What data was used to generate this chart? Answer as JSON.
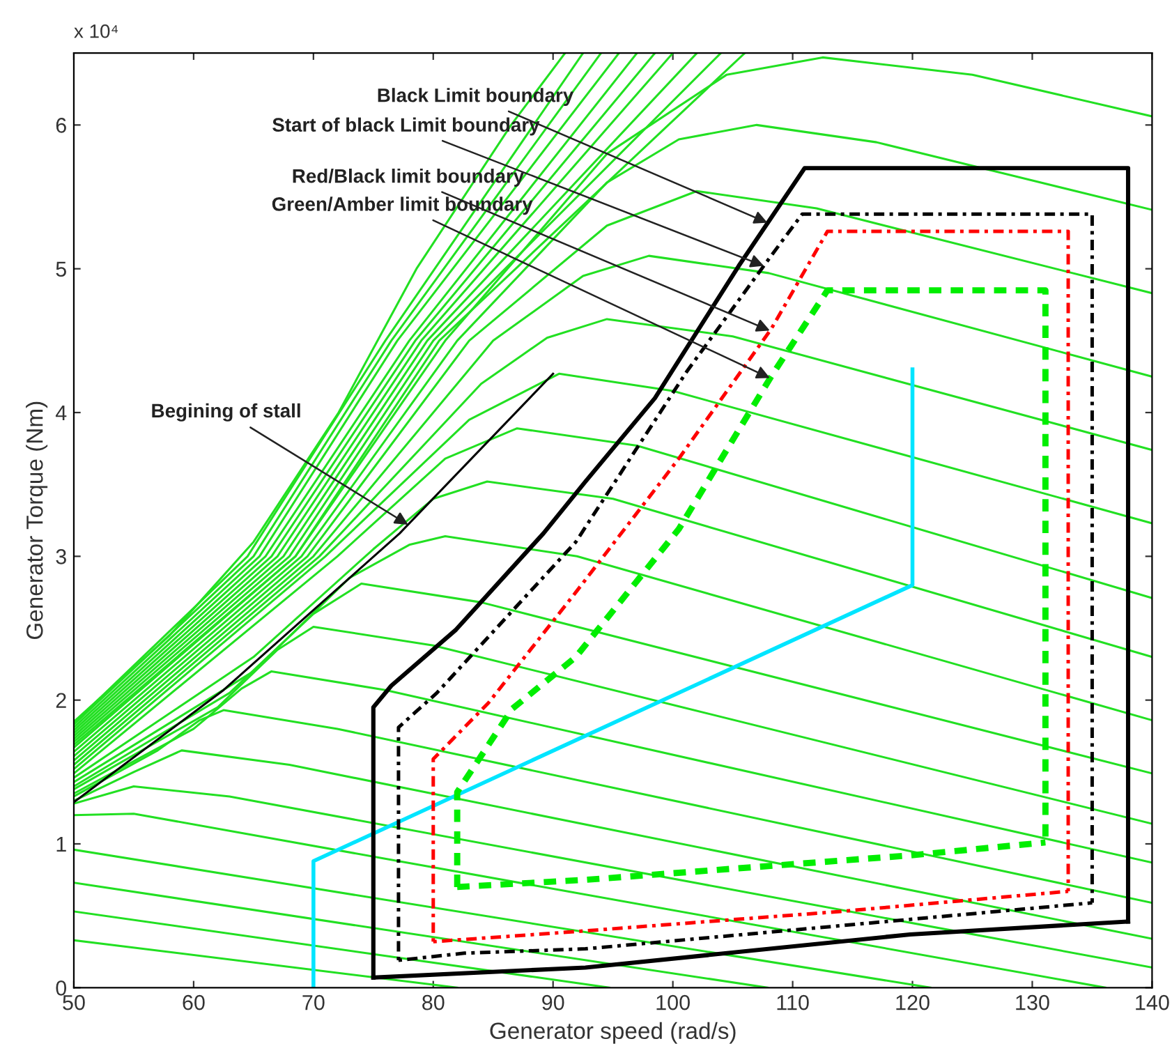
{
  "chart_data": {
    "type": "line",
    "xlabel": "Generator speed (rad/s)",
    "ylabel": "Generator Torque (Nm)",
    "xlim": [
      50,
      140
    ],
    "xticks": [
      50,
      60,
      70,
      80,
      90,
      100,
      110,
      120,
      130,
      140
    ],
    "ylim": [
      0,
      6.5
    ],
    "yticks": [
      0,
      1,
      2,
      3,
      4,
      5,
      6
    ],
    "grid": false,
    "annotations": [
      {
        "text": "x 10⁴"
      },
      {
        "text": "Black Limit boundary",
        "x": 107.9,
        "y": 5.32
      },
      {
        "text": "Start of black Limit boundary",
        "x": 107.6,
        "y": 5.02
      },
      {
        "text": "Red/Black limit boundary",
        "x": 108.1,
        "y": 4.57
      },
      {
        "text": "Green/Amber limit boundary",
        "x": 108.1,
        "y": 4.24
      },
      {
        "text": "Begining of stall",
        "x": 77.9,
        "y": 3.22
      }
    ],
    "series": [
      {
        "color": "#22e022",
        "line_style": "solid",
        "x": [
          50,
          82
        ],
        "values": [
          0.33,
          0
        ]
      },
      {
        "color": "#22e022",
        "line_style": "solid",
        "x": [
          50,
          94.7
        ],
        "values": [
          0.53,
          0
        ]
      },
      {
        "color": "#22e022",
        "line_style": "solid",
        "x": [
          50,
          107.9
        ],
        "values": [
          0.73,
          0
        ]
      },
      {
        "color": "#22e022",
        "line_style": "solid",
        "x": [
          50,
          121.5
        ],
        "values": [
          0.96,
          0
        ]
      },
      {
        "color": "#22e022",
        "line_style": "solid",
        "x": [
          50,
          55,
          136.1
        ],
        "values": [
          1.2,
          1.21,
          0
        ]
      },
      {
        "color": "#22e022",
        "line_style": "solid",
        "x": [
          50,
          55,
          63,
          140
        ],
        "values": [
          1.28,
          1.4,
          1.33,
          0.14
        ]
      },
      {
        "color": "#22e022",
        "line_style": "solid",
        "x": [
          50,
          55,
          59,
          68,
          140
        ],
        "values": [
          1.3,
          1.5,
          1.65,
          1.55,
          0.34
        ]
      },
      {
        "color": "#22e022",
        "line_style": "solid",
        "x": [
          50,
          57,
          60.5,
          62.5,
          72,
          140
        ],
        "values": [
          1.33,
          1.65,
          1.86,
          1.93,
          1.8,
          0.59
        ]
      },
      {
        "color": "#22e022",
        "line_style": "solid",
        "x": [
          50,
          60,
          64,
          66.5,
          76,
          140
        ],
        "values": [
          1.35,
          1.8,
          2.08,
          2.2,
          2.07,
          0.87
        ]
      },
      {
        "color": "#22e022",
        "line_style": "solid",
        "x": [
          50,
          62,
          67,
          70,
          80,
          140
        ],
        "values": [
          1.38,
          1.95,
          2.35,
          2.51,
          2.38,
          1.14
        ]
      },
      {
        "color": "#22e022",
        "line_style": "solid",
        "x": [
          50,
          63,
          70,
          74,
          84,
          140
        ],
        "values": [
          1.4,
          2.05,
          2.6,
          2.81,
          2.68,
          1.49
        ]
      },
      {
        "color": "#22e022",
        "line_style": "solid",
        "x": [
          50,
          65,
          73,
          78,
          81,
          92,
          140
        ],
        "values": [
          1.43,
          2.2,
          2.85,
          3.08,
          3.14,
          3.0,
          1.86
        ]
      },
      {
        "color": "#22e022",
        "line_style": "solid",
        "x": [
          50,
          65,
          75,
          80,
          84.5,
          95,
          140
        ],
        "values": [
          1.46,
          2.3,
          3.05,
          3.4,
          3.52,
          3.4,
          2.3
        ]
      },
      {
        "color": "#22e022",
        "line_style": "solid",
        "x": [
          50,
          72,
          81,
          87,
          97,
          140
        ],
        "values": [
          1.49,
          3.0,
          3.68,
          3.89,
          3.77,
          2.71
        ]
      },
      {
        "color": "#22e022",
        "line_style": "solid",
        "x": [
          50,
          71,
          83,
          90.5,
          100,
          140
        ],
        "values": [
          1.52,
          3.0,
          3.95,
          4.27,
          4.15,
          3.23
        ]
      },
      {
        "color": "#22e022",
        "line_style": "solid",
        "x": [
          50,
          70.5,
          84,
          89.5,
          94.5,
          105,
          140
        ],
        "values": [
          1.55,
          3.0,
          4.2,
          4.52,
          4.65,
          4.53,
          3.74
        ]
      },
      {
        "color": "#22e022",
        "line_style": "solid",
        "x": [
          50,
          70,
          85,
          92.5,
          98,
          108,
          140
        ],
        "values": [
          1.58,
          3.0,
          4.5,
          4.95,
          5.09,
          4.97,
          4.25
        ]
      },
      {
        "color": "#22e022",
        "line_style": "solid",
        "x": [
          50,
          69.5,
          83,
          94.5,
          102,
          112,
          140
        ],
        "values": [
          1.61,
          3.0,
          4.5,
          5.3,
          5.54,
          5.42,
          4.83
        ]
      },
      {
        "color": "#22e022",
        "line_style": "solid",
        "x": [
          50,
          69,
          82,
          94.5,
          100.5,
          107,
          117,
          140
        ],
        "values": [
          1.64,
          3.0,
          4.5,
          5.6,
          5.9,
          6.0,
          5.88,
          5.41
        ]
      },
      {
        "color": "#22e022",
        "line_style": "solid",
        "x": [
          50,
          68.5,
          81,
          94.5,
          104.5,
          112.5,
          125,
          140
        ],
        "values": [
          1.67,
          3.0,
          4.5,
          5.8,
          6.35,
          6.47,
          6.35,
          6.06
        ]
      },
      {
        "color": "#22e022",
        "line_style": "solid",
        "x": [
          50,
          68.5,
          80.5,
          106
        ],
        "values": [
          1.69,
          3.0,
          4.5,
          6.5
        ]
      },
      {
        "color": "#22e022",
        "line_style": "solid",
        "x": [
          50,
          68,
          80,
          104
        ],
        "values": [
          1.71,
          3.0,
          4.5,
          6.5
        ]
      },
      {
        "color": "#22e022",
        "line_style": "solid",
        "x": [
          50,
          67.5,
          79.5,
          102
        ],
        "values": [
          1.73,
          3.0,
          4.5,
          6.5
        ]
      },
      {
        "color": "#22e022",
        "line_style": "solid",
        "x": [
          50,
          67,
          79,
          100
        ],
        "values": [
          1.75,
          3.0,
          4.5,
          6.5
        ]
      },
      {
        "color": "#22e022",
        "line_style": "solid",
        "x": [
          50,
          66.5,
          78.5,
          98.5
        ],
        "values": [
          1.77,
          3.0,
          4.5,
          6.5
        ]
      },
      {
        "color": "#22e022",
        "line_style": "solid",
        "x": [
          50,
          66,
          78,
          97
        ],
        "values": [
          1.79,
          3.0,
          4.5,
          6.5
        ]
      },
      {
        "color": "#22e022",
        "line_style": "solid",
        "x": [
          50,
          65.5,
          77,
          95.5
        ],
        "values": [
          1.81,
          3.0,
          4.5,
          6.5
        ]
      },
      {
        "color": "#22e022",
        "line_style": "solid",
        "x": [
          50,
          65,
          76.5,
          94
        ],
        "values": [
          1.83,
          3.0,
          4.5,
          6.5
        ]
      },
      {
        "color": "#22e022",
        "line_style": "solid",
        "x": [
          50,
          64.5,
          76,
          92.5
        ],
        "values": [
          1.84,
          3.0,
          4.5,
          6.5
        ]
      },
      {
        "color": "#22e022",
        "line_style": "solid",
        "x": [
          50,
          58,
          65,
          72.1,
          78.6,
          86.5,
          91
        ],
        "values": [
          1.85,
          2.45,
          3.1,
          4.0,
          5.0,
          6.0,
          6.5
        ]
      },
      {
        "color": "#000000",
        "line_style": "solid",
        "x": [
          50,
          62.5,
          77.2,
          90
        ],
        "values": [
          1.29,
          2.07,
          3.16,
          4.27
        ]
      },
      {
        "color": "#00e5ff",
        "line_style": "solid",
        "x": [
          70,
          70,
          120,
          120
        ],
        "values": [
          0,
          0.88,
          2.8,
          4.3
        ]
      },
      {
        "color": "#000000",
        "line_style": "solid",
        "x": [
          75,
          75,
          76.5,
          81.9,
          89.2,
          92.7,
          98.5,
          105.5,
          111,
          138,
          138
        ],
        "values": [
          0.07,
          1.95,
          2.1,
          2.49,
          3.16,
          3.52,
          4.1,
          5.02,
          5.7,
          5.7,
          0.46
        ]
      },
      {
        "color": "#000000",
        "line_style": "solid",
        "x": [
          75,
          92.7,
          119.8,
          138
        ],
        "values": [
          0.07,
          0.14,
          0.37,
          0.46
        ]
      },
      {
        "color": "#000000",
        "line_style": "dotted",
        "x": [
          77.1,
          77.1,
          80.3,
          91.9,
          101.2,
          108.2,
          110.8,
          135,
          135
        ],
        "values": [
          0.19,
          1.81,
          2.05,
          3.1,
          4.29,
          5.09,
          5.38,
          5.38,
          0.59
        ]
      },
      {
        "color": "#000000",
        "line_style": "dotted",
        "x": [
          77.1,
          82.6,
          92.7,
          135
        ],
        "values": [
          0.19,
          0.24,
          0.27,
          0.59
        ]
      },
      {
        "color": "#ff0000",
        "line_style": "dotted",
        "x": [
          80,
          80,
          84.6,
          91.9,
          100.5,
          108.2,
          112.9,
          133,
          133
        ],
        "values": [
          0.32,
          1.59,
          1.98,
          2.75,
          3.68,
          4.58,
          5.26,
          5.26,
          0.67
        ]
      },
      {
        "color": "#ff0000",
        "line_style": "dotted",
        "x": [
          80,
          91.9,
          114,
          133
        ],
        "values": [
          0.32,
          0.39,
          0.53,
          0.67
        ]
      },
      {
        "color": "#00ee00",
        "line_style": "dashed",
        "x": [
          82,
          82,
          86.6,
          91.9,
          100.5,
          108.2,
          112.9,
          131.1,
          131.1
        ],
        "values": [
          0.7,
          1.36,
          1.94,
          2.3,
          3.19,
          4.25,
          4.85,
          4.85,
          1.01
        ]
      },
      {
        "color": "#00ee00",
        "line_style": "dashed",
        "x": [
          82,
          92.7,
          119.8,
          131.1
        ],
        "values": [
          0.7,
          0.75,
          0.92,
          1.01
        ]
      }
    ]
  }
}
